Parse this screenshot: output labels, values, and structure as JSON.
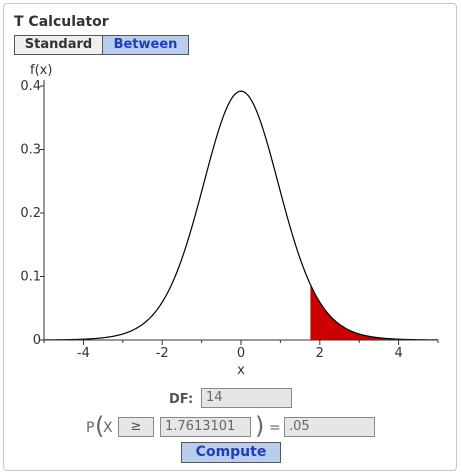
{
  "title": "T Calculator",
  "tabs": [
    {
      "label": "Standard",
      "active": false
    },
    {
      "label": "Between",
      "active": true
    }
  ],
  "chart_data": {
    "type": "area",
    "ylabel": "f(x)",
    "xlabel": "x",
    "x_ticks": [
      -4,
      -2,
      0,
      2,
      4
    ],
    "x_tick_labels": [
      "-4",
      "-2",
      "0",
      "2",
      "4"
    ],
    "y_ticks": [
      0,
      0.1,
      0.2,
      0.3,
      0.4
    ],
    "y_tick_labels": [
      "0",
      "0.1",
      "0.2",
      "0.3",
      "0.4"
    ],
    "xlim": [
      -5,
      5
    ],
    "ylim": [
      0,
      0.4
    ],
    "df": 14,
    "shade_from": 1.7613101,
    "shade_to": 5,
    "curve_color": "#000000",
    "shade_color": "#cc0000"
  },
  "form": {
    "df_label": "DF:",
    "df_value": "14",
    "p_label": "P",
    "x_label": "X",
    "operator": "≥",
    "x_value": "1.7613101",
    "equals": "=",
    "p_value": ".05",
    "compute_label": "Compute"
  }
}
